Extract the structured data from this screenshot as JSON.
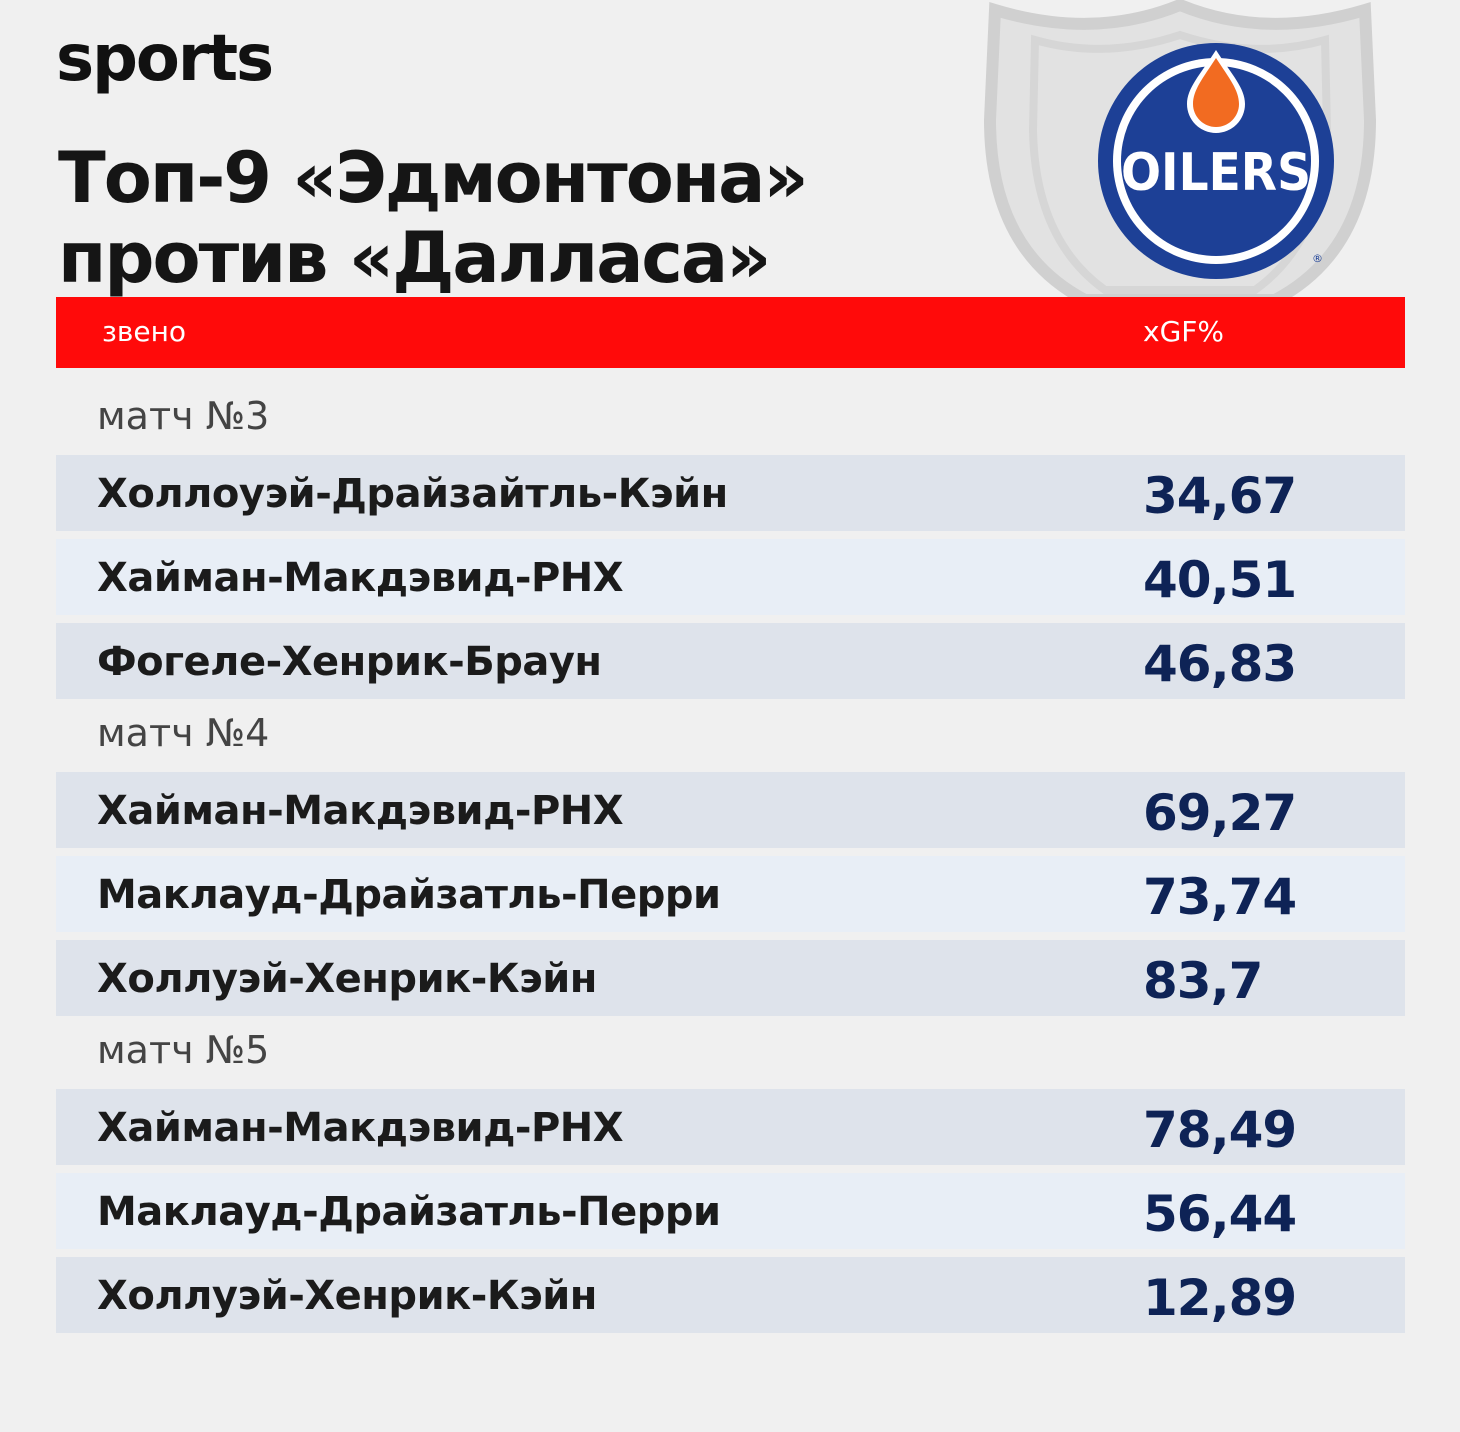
{
  "brand": "sports",
  "title": {
    "line1": "Топ-9 «Эдмонтона»",
    "line2": "против «Далласа»"
  },
  "logo": {
    "text": "OILERS",
    "colors": {
      "blue": "#1d4096",
      "orange": "#f26b21"
    }
  },
  "colors": {
    "header_bar": "#ff0a0a",
    "value_text": "#0e2356"
  },
  "chart_data": {
    "type": "table",
    "columns": [
      "звено",
      "xGF%"
    ],
    "groups": [
      {
        "label": "матч №3",
        "rows": [
          {
            "line": "Холлоуэй-Драйзайтль-Кэйн",
            "xgf": "34,67"
          },
          {
            "line": "Хайман-Макдэвид-РНХ",
            "xgf": "40,51"
          },
          {
            "line": "Фогеле-Хенрик-Браун",
            "xgf": "46,83"
          }
        ]
      },
      {
        "label": "матч №4",
        "rows": [
          {
            "line": "Хайман-Макдэвид-РНХ",
            "xgf": "69,27"
          },
          {
            "line": "Маклауд-Драйзатль-Перри",
            "xgf": "73,74"
          },
          {
            "line": "Холлуэй-Хенрик-Кэйн",
            "xgf": "83,7"
          }
        ]
      },
      {
        "label": "матч №5",
        "rows": [
          {
            "line": "Хайман-Макдэвид-РНХ",
            "xgf": "78,49"
          },
          {
            "line": "Маклауд-Драйзатль-Перри",
            "xgf": "56,44"
          },
          {
            "line": "Холлуэй-Хенрик-Кэйн",
            "xgf": "12,89"
          }
        ]
      }
    ]
  }
}
